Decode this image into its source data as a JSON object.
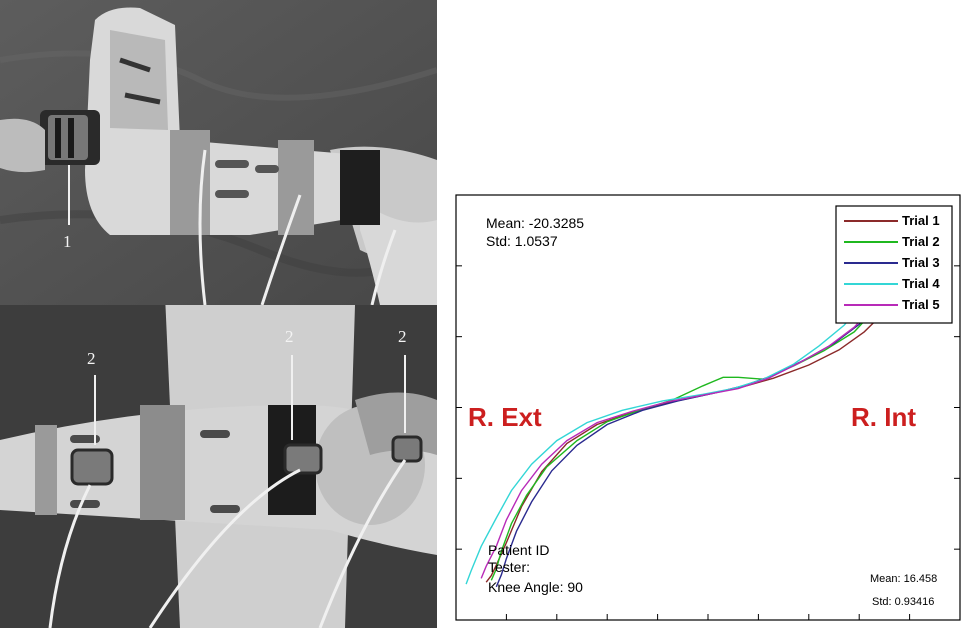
{
  "photos": {
    "top_callouts": [
      "1"
    ],
    "bottom_callouts": [
      "2",
      "2",
      "2"
    ]
  },
  "chart_data": {
    "type": "line",
    "title": "",
    "xlabel": "",
    "ylabel": "",
    "xlim": [
      0,
      100
    ],
    "ylim": [
      -25,
      20
    ],
    "grid": false,
    "legend_placement": "top-right",
    "series": [
      {
        "name": "Trial 1",
        "color": "#8b2a2a",
        "points": [
          [
            6,
            -21.0
          ],
          [
            7,
            -20.3
          ],
          [
            8,
            -19.2
          ],
          [
            10,
            -16.8
          ],
          [
            13,
            -13.0
          ],
          [
            17,
            -9.3
          ],
          [
            22,
            -6.3
          ],
          [
            28,
            -4.3
          ],
          [
            35,
            -3.0
          ],
          [
            42,
            -2.0
          ],
          [
            50,
            -1.1
          ],
          [
            57,
            -0.3
          ],
          [
            63,
            0.6
          ],
          [
            70,
            2.0
          ],
          [
            76,
            3.6
          ],
          [
            81,
            5.5
          ],
          [
            85,
            7.6
          ],
          [
            88,
            10.0
          ],
          [
            91,
            12.5
          ],
          [
            94,
            15.0
          ],
          [
            97,
            17.6
          ]
        ]
      },
      {
        "name": "Trial 2",
        "color": "#1fb81f",
        "points": [
          [
            7,
            -20.8
          ],
          [
            8,
            -19.6
          ],
          [
            9,
            -17.7
          ],
          [
            11,
            -14.8
          ],
          [
            14,
            -11.8
          ],
          [
            18,
            -8.8
          ],
          [
            24,
            -6.0
          ],
          [
            30,
            -4.0
          ],
          [
            37,
            -2.7
          ],
          [
            43,
            -1.7
          ],
          [
            49,
            -0.2
          ],
          [
            53,
            0.7
          ],
          [
            56,
            0.7
          ],
          [
            61,
            0.5
          ],
          [
            67,
            1.9
          ],
          [
            73,
            3.5
          ],
          [
            79,
            5.5
          ],
          [
            83,
            7.8
          ],
          [
            87,
            10.6
          ],
          [
            90,
            13.5
          ],
          [
            93,
            16.0
          ],
          [
            94,
            16.8
          ]
        ]
      },
      {
        "name": "Trial 3",
        "color": "#2a2a8f",
        "points": [
          [
            8,
            -21.5
          ],
          [
            9,
            -20.2
          ],
          [
            10,
            -18.5
          ],
          [
            12,
            -15.6
          ],
          [
            15,
            -12.5
          ],
          [
            19,
            -9.2
          ],
          [
            24,
            -6.5
          ],
          [
            30,
            -4.3
          ],
          [
            37,
            -2.8
          ],
          [
            44,
            -1.8
          ],
          [
            51,
            -1.0
          ],
          [
            57,
            -0.2
          ],
          [
            63,
            0.9
          ],
          [
            69,
            2.5
          ],
          [
            75,
            4.3
          ],
          [
            80,
            6.3
          ],
          [
            84,
            8.6
          ],
          [
            88,
            11.2
          ],
          [
            92,
            14.0
          ],
          [
            95,
            16.5
          ]
        ]
      },
      {
        "name": "Trial 4",
        "color": "#33d6d6",
        "points": [
          [
            2,
            -21.2
          ],
          [
            3,
            -19.8
          ],
          [
            5,
            -17.2
          ],
          [
            8,
            -14.2
          ],
          [
            11,
            -11.3
          ],
          [
            15,
            -8.5
          ],
          [
            20,
            -6.0
          ],
          [
            26,
            -4.1
          ],
          [
            33,
            -2.8
          ],
          [
            41,
            -1.8
          ],
          [
            49,
            -1.1
          ],
          [
            55,
            -0.5
          ],
          [
            61,
            0.5
          ],
          [
            67,
            2.1
          ],
          [
            72,
            4.0
          ],
          [
            77,
            6.2
          ],
          [
            81,
            8.7
          ],
          [
            85,
            11.4
          ],
          [
            88,
            13.7
          ],
          [
            92,
            16.0
          ]
        ]
      },
      {
        "name": "Trial 5",
        "color": "#b82ab8",
        "points": [
          [
            5,
            -20.6
          ],
          [
            6,
            -19.3
          ],
          [
            8,
            -17.2
          ],
          [
            10,
            -14.4
          ],
          [
            13,
            -11.3
          ],
          [
            17,
            -8.5
          ],
          [
            22,
            -6.0
          ],
          [
            28,
            -4.1
          ],
          [
            35,
            -2.9
          ],
          [
            42,
            -1.9
          ],
          [
            49,
            -1.2
          ],
          [
            56,
            -0.5
          ],
          [
            62,
            0.6
          ],
          [
            68,
            2.2
          ],
          [
            74,
            4.0
          ],
          [
            79,
            6.0
          ],
          [
            83,
            8.3
          ],
          [
            87,
            11.0
          ],
          [
            90,
            13.4
          ],
          [
            93,
            15.8
          ]
        ]
      }
    ],
    "annotations": {
      "mean_left": "Mean: -20.3285",
      "std_left": "Std: 1.0537",
      "mean_right": "Mean: 16.458",
      "std_right": "Std: 0.93416",
      "patient_id": "Patient ID",
      "tester": "Tester:",
      "knee_angle": "Knee Angle: 90",
      "region_ext": "R. Ext",
      "region_int": "R. Int"
    }
  }
}
